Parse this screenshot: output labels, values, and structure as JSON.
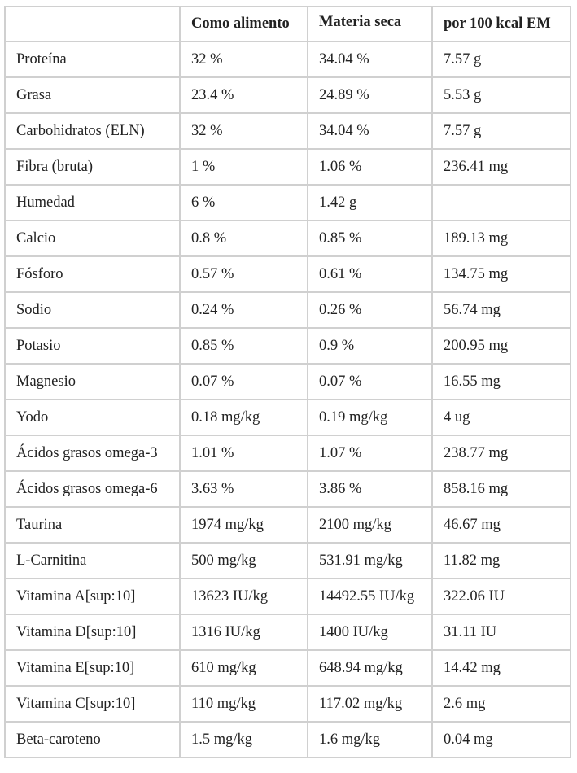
{
  "table": {
    "headers": [
      "",
      "Como alimento",
      "Materia seca",
      "por 100 kcal EM"
    ],
    "rows": [
      [
        "Proteína",
        "32 %",
        "34.04 %",
        "7.57 g"
      ],
      [
        "Grasa",
        "23.4 %",
        "24.89 %",
        "5.53 g"
      ],
      [
        "Carbohidratos (ELN)",
        "32 %",
        "34.04 %",
        "7.57 g"
      ],
      [
        "Fibra (bruta)",
        "1 %",
        "1.06 %",
        "236.41 mg"
      ],
      [
        "Humedad",
        "6 %",
        "1.42 g",
        ""
      ],
      [
        "Calcio",
        "0.8 %",
        "0.85 %",
        "189.13 mg"
      ],
      [
        "Fósforo",
        "0.57 %",
        "0.61 %",
        "134.75 mg"
      ],
      [
        "Sodio",
        "0.24 %",
        "0.26 %",
        "56.74 mg"
      ],
      [
        "Potasio",
        "0.85 %",
        "0.9 %",
        "200.95 mg"
      ],
      [
        "Magnesio",
        "0.07 %",
        "0.07 %",
        "16.55 mg"
      ],
      [
        "Yodo",
        "0.18 mg/kg",
        "0.19 mg/kg",
        "4 ug"
      ],
      [
        "Ácidos grasos omega-3",
        "1.01 %",
        "1.07 %",
        "238.77 mg"
      ],
      [
        "Ácidos grasos omega-6",
        "3.63 %",
        "3.86 %",
        "858.16 mg"
      ],
      [
        "Taurina",
        "1974 mg/kg",
        "2100 mg/kg",
        "46.67 mg"
      ],
      [
        "L-Carnitina",
        "500 mg/kg",
        "531.91 mg/kg",
        "11.82 mg"
      ],
      [
        "Vitamina A[sup:10]",
        "13623 IU/kg",
        "14492.55 IU/kg",
        "322.06 IU"
      ],
      [
        "Vitamina D[sup:10]",
        "1316 IU/kg",
        "1400 IU/kg",
        "31.11 IU"
      ],
      [
        "Vitamina E[sup:10]",
        "610 mg/kg",
        "648.94 mg/kg",
        "14.42 mg"
      ],
      [
        "Vitamina C[sup:10]",
        "110 mg/kg",
        "117.02 mg/kg",
        "2.6 mg"
      ],
      [
        "Beta-caroteno",
        "1.5 mg/kg",
        "1.6 mg/kg",
        "0.04 mg"
      ]
    ]
  }
}
